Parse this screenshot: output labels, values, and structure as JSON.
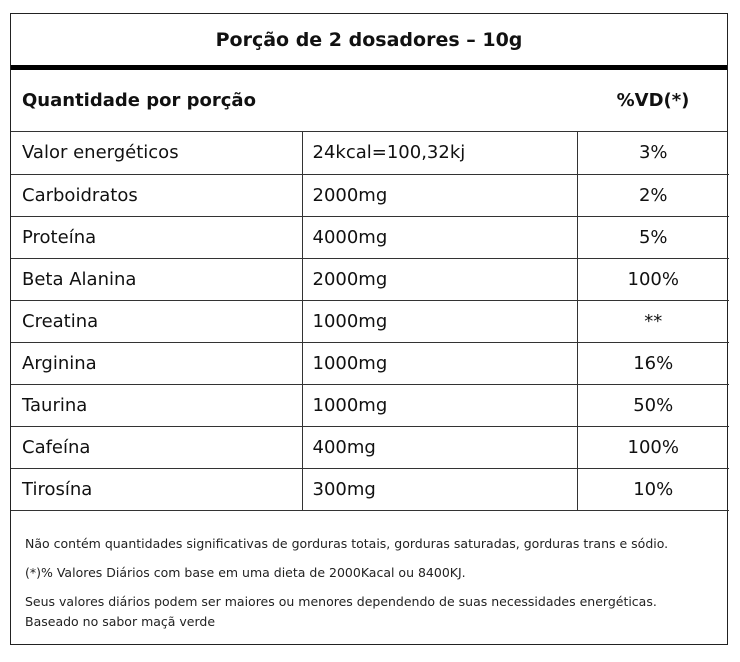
{
  "title": "Porção de 2 dosadores – 10g",
  "header": {
    "left": "Quantidade por porção",
    "right": "%VD(*)"
  },
  "rows": [
    {
      "name": "Valor energéticos",
      "amount": "24kcal=100,32kj",
      "vd": "3%"
    },
    {
      "name": "Carboidratos",
      "amount": "2000mg",
      "vd": "2%"
    },
    {
      "name": "Proteína",
      "amount": "4000mg",
      "vd": "5%"
    },
    {
      "name": "Beta Alanina",
      "amount": "2000mg",
      "vd": "100%"
    },
    {
      "name": "Creatina",
      "amount": "1000mg",
      "vd": "**"
    },
    {
      "name": "Arginina",
      "amount": "1000mg",
      "vd": "16%"
    },
    {
      "name": "Taurina",
      "amount": "1000mg",
      "vd": "50%"
    },
    {
      "name": "Cafeína",
      "amount": "400mg",
      "vd": "100%"
    },
    {
      "name": "Tirosína",
      "amount": "300mg",
      "vd": "10%"
    }
  ],
  "notes": {
    "line1": "Não contém quantidades significativas de gorduras totais, gorduras saturadas, gorduras trans e sódio.",
    "line2": "(*)% Valores Diários com base em uma dieta de 2000Kacal ou 8400KJ.",
    "line3": "Seus valores diários podem ser maiores ou menores dependendo de suas necessidades energéticas.",
    "line4": "Baseado no sabor maçã verde"
  }
}
